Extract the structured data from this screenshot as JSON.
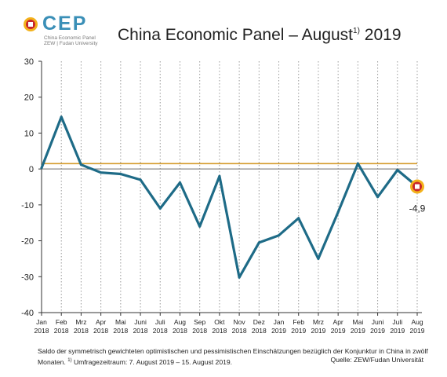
{
  "logo": {
    "text": "CEP",
    "line1": "China Economic Panel",
    "line2": "ZEW | Fudan University"
  },
  "title": {
    "main": "China Economic Panel – August",
    "sup": "1)",
    "year": "2019"
  },
  "chart_data": {
    "type": "line",
    "categories": [
      [
        "Jan",
        "2018"
      ],
      [
        "Feb",
        "2018"
      ],
      [
        "Mrz",
        "2018"
      ],
      [
        "Apr",
        "2018"
      ],
      [
        "Mai",
        "2018"
      ],
      [
        "Juni",
        "2018"
      ],
      [
        "Juli",
        "2018"
      ],
      [
        "Aug",
        "2018"
      ],
      [
        "Sep",
        "2018"
      ],
      [
        "Okt",
        "2018"
      ],
      [
        "Nov",
        "2018"
      ],
      [
        "Dez",
        "2018"
      ],
      [
        "Jan",
        "2019"
      ],
      [
        "Feb",
        "2019"
      ],
      [
        "Mrz",
        "2019"
      ],
      [
        "Apr",
        "2019"
      ],
      [
        "Mai",
        "2019"
      ],
      [
        "Juni",
        "2019"
      ],
      [
        "Juli",
        "2019"
      ],
      [
        "Aug",
        "2019"
      ]
    ],
    "series": [
      {
        "values": [
          0.3,
          14.5,
          1.2,
          -1.0,
          -1.4,
          -3.0,
          -11.0,
          -3.8,
          -16.0,
          -2.0,
          -30.2,
          -20.5,
          -18.5,
          -13.7,
          -25.0,
          -12.0,
          1.5,
          -7.8,
          -0.3,
          -4.9
        ]
      }
    ],
    "ylim": [
      -40,
      30
    ],
    "yticks": [
      30,
      20,
      10,
      0,
      -10,
      -20,
      -30,
      -40
    ],
    "reference_line": 1.5,
    "last_value_label": "-4,9",
    "grid": "vertical-dotted",
    "colors": {
      "line": "#1e6b87",
      "reference": "#d49a2a",
      "zero": "#888888",
      "marker_outer": "#f3b21b",
      "marker_inner": "#c8272b"
    }
  },
  "footnote": {
    "line1": "Saldo der symmetrisch gewichteten optimistischen und pessimistischen Einschätzungen bezüglich der Konjunktur in China in zwölf",
    "line2a": "Monaten.",
    "line2sup": "1)",
    "line2b": "Umfragezeitraum: 7. August 2019 – 15. August 2019.",
    "source": "Quelle: ZEW/Fudan Universität"
  }
}
